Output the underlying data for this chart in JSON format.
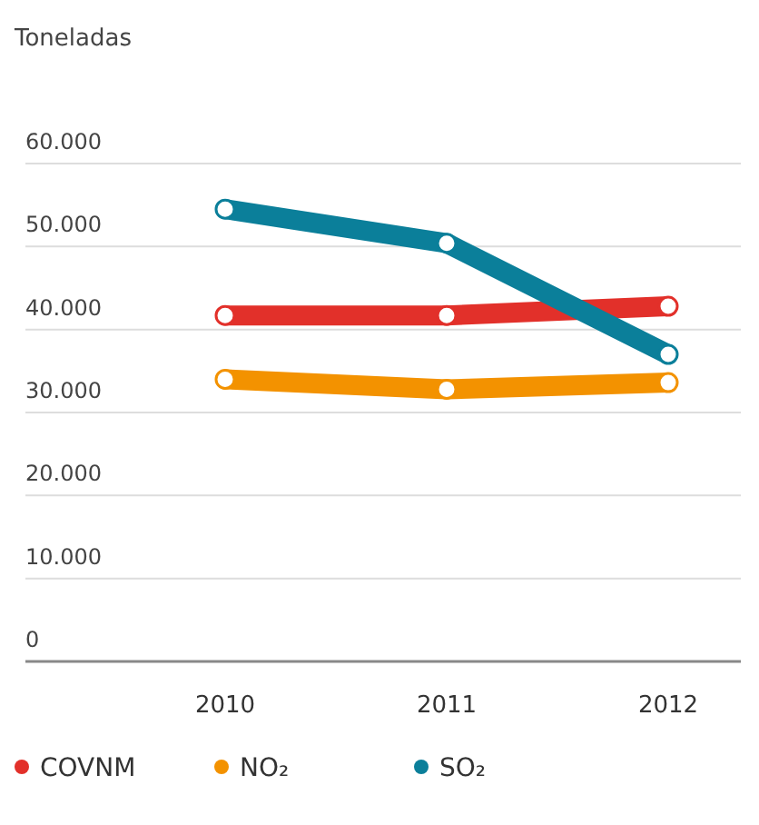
{
  "chart_data": {
    "type": "line",
    "ylabel": "Toneladas",
    "categories": [
      "2010",
      "2011",
      "2012"
    ],
    "series": [
      {
        "name": "COVNM",
        "color": "#e2302a",
        "values": [
          41700,
          41700,
          42800
        ]
      },
      {
        "name": "NO₂",
        "color": "#f39200",
        "values": [
          34000,
          32800,
          33600
        ]
      },
      {
        "name": "SO₂",
        "color": "#0b7f9a",
        "values": [
          54500,
          50400,
          37000
        ]
      }
    ],
    "ylim": [
      0,
      60000
    ],
    "yticks": [
      {
        "value": 0,
        "label": "0"
      },
      {
        "value": 10000,
        "label": "10.000"
      },
      {
        "value": 20000,
        "label": "20.000"
      },
      {
        "value": 30000,
        "label": "30.000"
      },
      {
        "value": 40000,
        "label": "40.000"
      },
      {
        "value": 50000,
        "label": "50.000"
      },
      {
        "value": 60000,
        "label": "60.000"
      }
    ],
    "grid": "y",
    "legend": "bottom",
    "marker": "circle",
    "line_style": "solid"
  }
}
